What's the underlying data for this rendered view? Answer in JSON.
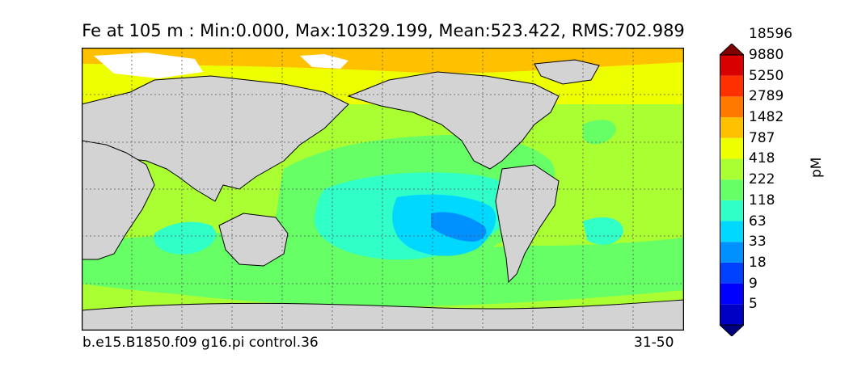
{
  "title": "Fe at 105 m : Min:0.000, Max:10329.199, Mean:523.422, RMS:702.989",
  "footer": {
    "case_name": "b.e15.B1850.f09 g16.pi control.36",
    "years": "31-50"
  },
  "colorbar": {
    "unit": "pM",
    "levels": [
      "5",
      "9",
      "18",
      "33",
      "63",
      "118",
      "222",
      "418",
      "787",
      "1482",
      "2789",
      "5250",
      "9880",
      "18596"
    ],
    "colors": [
      "#00007f",
      "#0000c4",
      "#0000ff",
      "#0040ff",
      "#0090ff",
      "#00d8ff",
      "#30ffc8",
      "#66ff66",
      "#aaff33",
      "#eeff00",
      "#ffc000",
      "#ff7800",
      "#ff3000",
      "#d80000",
      "#800000"
    ]
  },
  "map": {
    "land_color": "#d3d3d3",
    "missing_color": "#ffffff"
  }
}
